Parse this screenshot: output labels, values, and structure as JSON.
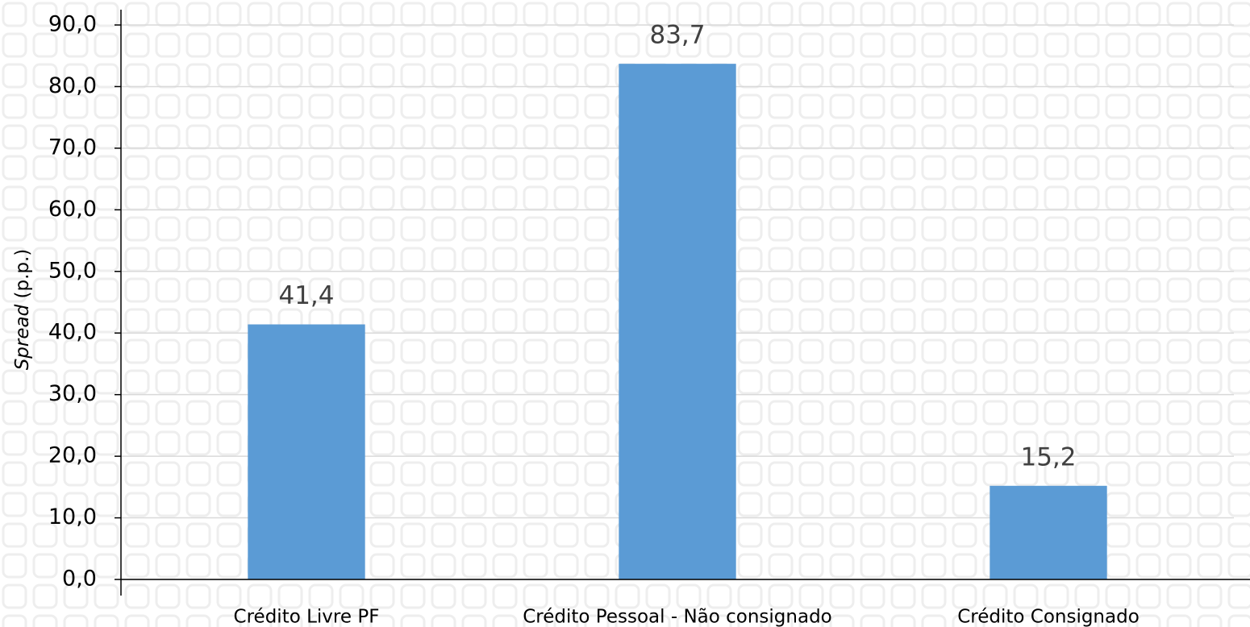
{
  "chart_data": {
    "type": "bar",
    "ylabel": {
      "emphasis": "Spread",
      "text": "(p.p.)"
    },
    "categories": [
      "Crédito Livre PF",
      "Crédito Pessoal - Não consignado",
      "Crédito Consignado"
    ],
    "values": [
      41.4,
      83.7,
      15.2
    ],
    "value_labels": [
      "41,4",
      "83,7",
      "15,2"
    ],
    "color": "#5b9bd5",
    "ylim": [
      0,
      90
    ],
    "yticks": [
      {
        "value": 0,
        "label": "0,0"
      },
      {
        "value": 10,
        "label": "10,0"
      },
      {
        "value": 20,
        "label": "20,0"
      },
      {
        "value": 30,
        "label": "30,0"
      },
      {
        "value": 40,
        "label": "40,0"
      },
      {
        "value": 50,
        "label": "50,0"
      },
      {
        "value": 60,
        "label": "60,0"
      },
      {
        "value": 70,
        "label": "70,0"
      },
      {
        "value": 80,
        "label": "80,0"
      },
      {
        "value": 90,
        "label": "90,0"
      }
    ],
    "grid": true
  }
}
